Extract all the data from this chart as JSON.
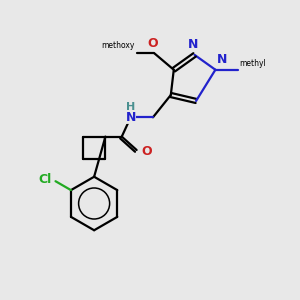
{
  "background_color": "#e8e8e8",
  "atom_colors": {
    "C": "#000000",
    "N_blue": "#2222cc",
    "N_teal": "#4a9090",
    "O": "#cc2222",
    "Cl": "#22aa22",
    "H": "#4a9090"
  },
  "bond_lw": 1.6,
  "figsize": [
    3.0,
    3.0
  ],
  "dpi": 100,
  "xlim": [
    0,
    10
  ],
  "ylim": [
    0,
    10
  ]
}
